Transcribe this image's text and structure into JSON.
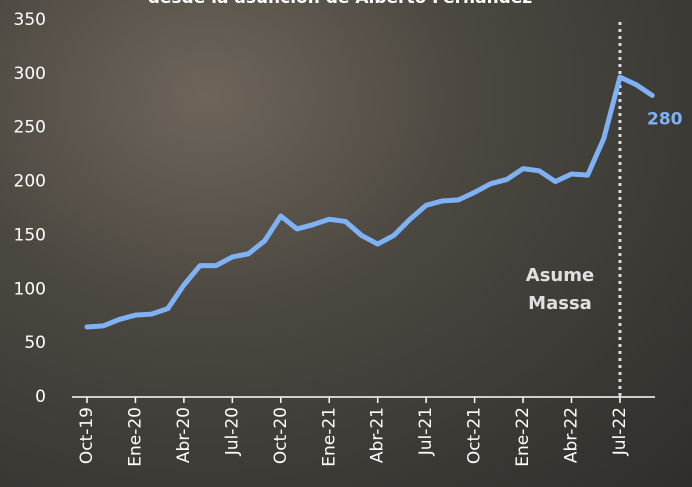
{
  "chart_data": {
    "type": "line",
    "title": "desde la asunción de Alberto Fernández",
    "categories": [
      "Oct-19",
      null,
      null,
      "Ene-20",
      null,
      null,
      "Abr-20",
      null,
      null,
      "Jul-20",
      null,
      null,
      "Oct-20",
      null,
      null,
      "Ene-21",
      null,
      null,
      "Abr-21",
      null,
      null,
      "Jul-21",
      null,
      null,
      "Oct-21",
      null,
      null,
      "Ene-22",
      null,
      null,
      "Abr-22",
      null,
      null,
      "Jul-22",
      null,
      null
    ],
    "series": [
      {
        "color": "#7fb2f5",
        "values": [
          65,
          66,
          72,
          76,
          77,
          82,
          104,
          122,
          122,
          130,
          133,
          145,
          168,
          156,
          160,
          165,
          163,
          150,
          142,
          150,
          165,
          178,
          182,
          183,
          190,
          198,
          202,
          212,
          210,
          200,
          207,
          206,
          240,
          297,
          290,
          280
        ]
      }
    ],
    "ylim": [
      0,
      350
    ],
    "yticks": [
      0,
      50,
      100,
      150,
      200,
      250,
      300,
      350
    ],
    "annotation": "Asume Massa",
    "annotation_category": 33
  }
}
